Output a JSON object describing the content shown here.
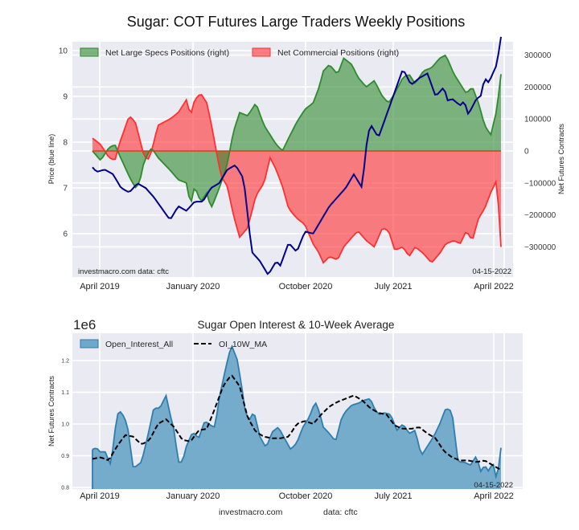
{
  "chart_data": [
    {
      "type": "area",
      "title": "Sugar: COT Futures Large Traders Weekly Positions",
      "xlabel": "",
      "ylabel": "Price (blue line)",
      "ylabel_right": "Net Futures Contracts",
      "x_ticks": [
        "April 2019",
        "January 2020",
        "October 2020",
        "July 2021",
        "April 2022"
      ],
      "y_ticks_left": [
        "6",
        "7",
        "8",
        "9",
        "10"
      ],
      "y_ticks_right": [
        "-300000",
        "-200000",
        "-100000",
        "0",
        "100000",
        "200000",
        "300000"
      ],
      "ylim_left": [
        5.1,
        10.2
      ],
      "ylim_right": [
        -395000,
        330000
      ],
      "grid": true,
      "legend": {
        "placement": "top",
        "entries": [
          "Net Large Specs Positions (right)",
          "Net Commercial Positions (right)"
        ]
      },
      "annotations": {
        "source": "investmacro.com   data: cftc",
        "date": "04-15-2022"
      },
      "colors": {
        "specs": "#2e8b2e",
        "commercial": "#ff3030",
        "price": "#00008b",
        "background": "#eaeaf2"
      },
      "x_date_range": [
        "2019-03-12",
        "2022-04-12"
      ],
      "series": [
        {
          "name": "Net Large Specs Positions (right)",
          "axis": "right",
          "keyframes_x": [
            0,
            0.02,
            0.04,
            0.055,
            0.065,
            0.09,
            0.105,
            0.115,
            0.125,
            0.135,
            0.145,
            0.16,
            0.19,
            0.21,
            0.23,
            0.24,
            0.25,
            0.265,
            0.28,
            0.29,
            0.3,
            0.315,
            0.33,
            0.345,
            0.36,
            0.38,
            0.4,
            0.42,
            0.435,
            0.45,
            0.465,
            0.48,
            0.5,
            0.52,
            0.54,
            0.555,
            0.565,
            0.58,
            0.6,
            0.615,
            0.635,
            0.65,
            0.67,
            0.69,
            0.71,
            0.725,
            0.74,
            0.76,
            0.775,
            0.79,
            0.81,
            0.83,
            0.85,
            0.865,
            0.885,
            0.9,
            0.915,
            0.93,
            0.945,
            0.96,
            0.975,
            0.99,
            1.0
          ],
          "keyframes_y": [
            0,
            -30000,
            10000,
            20000,
            -10000,
            -80000,
            -115000,
            -100000,
            -40000,
            -10000,
            10000,
            -20000,
            -60000,
            -90000,
            -100000,
            -170000,
            -110000,
            -160000,
            -130000,
            -180000,
            -150000,
            -100000,
            -40000,
            60000,
            120000,
            110000,
            150000,
            80000,
            50000,
            20000,
            0,
            40000,
            90000,
            130000,
            150000,
            200000,
            250000,
            270000,
            240000,
            290000,
            270000,
            230000,
            200000,
            220000,
            170000,
            150000,
            180000,
            230000,
            240000,
            210000,
            250000,
            260000,
            290000,
            300000,
            240000,
            210000,
            180000,
            200000,
            150000,
            80000,
            50000,
            130000,
            240000
          ]
        },
        {
          "name": "Net Commercial Positions (right)",
          "axis": "right",
          "keyframes_x": [
            0,
            0.02,
            0.04,
            0.055,
            0.065,
            0.09,
            0.105,
            0.115,
            0.125,
            0.135,
            0.145,
            0.16,
            0.19,
            0.21,
            0.23,
            0.24,
            0.25,
            0.265,
            0.28,
            0.29,
            0.3,
            0.315,
            0.33,
            0.345,
            0.36,
            0.38,
            0.4,
            0.42,
            0.435,
            0.45,
            0.465,
            0.48,
            0.5,
            0.52,
            0.54,
            0.555,
            0.565,
            0.58,
            0.6,
            0.615,
            0.635,
            0.65,
            0.67,
            0.69,
            0.71,
            0.725,
            0.74,
            0.76,
            0.775,
            0.79,
            0.81,
            0.83,
            0.85,
            0.865,
            0.885,
            0.9,
            0.915,
            0.93,
            0.945,
            0.96,
            0.975,
            0.99,
            1.0
          ],
          "keyframes_y": [
            40000,
            20000,
            -20000,
            -30000,
            20000,
            110000,
            90000,
            40000,
            -10000,
            -30000,
            0,
            80000,
            100000,
            120000,
            160000,
            110000,
            160000,
            180000,
            150000,
            90000,
            20000,
            -80000,
            -110000,
            -200000,
            -270000,
            -240000,
            -140000,
            -100000,
            -20000,
            -60000,
            -110000,
            -180000,
            -210000,
            -230000,
            -290000,
            -320000,
            -350000,
            -330000,
            -340000,
            -300000,
            -270000,
            -250000,
            -280000,
            -300000,
            -240000,
            -250000,
            -310000,
            -300000,
            -330000,
            -300000,
            -320000,
            -350000,
            -320000,
            -290000,
            -280000,
            -290000,
            -250000,
            -280000,
            -210000,
            -180000,
            -130000,
            -90000,
            -300000
          ]
        },
        {
          "name": "Price (blue line)",
          "axis": "left",
          "keyframes_x": [
            0,
            0.01,
            0.03,
            0.05,
            0.07,
            0.09,
            0.11,
            0.13,
            0.15,
            0.17,
            0.19,
            0.21,
            0.23,
            0.25,
            0.27,
            0.29,
            0.31,
            0.33,
            0.35,
            0.37,
            0.39,
            0.41,
            0.43,
            0.45,
            0.46,
            0.48,
            0.5,
            0.52,
            0.54,
            0.56,
            0.58,
            0.6,
            0.62,
            0.64,
            0.66,
            0.67,
            0.68,
            0.7,
            0.72,
            0.74,
            0.76,
            0.78,
            0.8,
            0.82,
            0.84,
            0.86,
            0.87,
            0.88,
            0.9,
            0.91,
            0.92,
            0.94,
            0.95,
            0.96,
            0.97,
            0.98,
            0.99,
            1.0
          ],
          "keyframes_y": [
            7.45,
            7.35,
            7.4,
            7.3,
            7.0,
            6.9,
            7.1,
            7.0,
            6.8,
            6.55,
            6.3,
            6.6,
            6.5,
            6.7,
            6.7,
            7.0,
            7.1,
            7.4,
            7.5,
            7.2,
            5.6,
            5.4,
            5.1,
            5.4,
            5.3,
            5.8,
            5.6,
            6.05,
            6.0,
            6.3,
            6.6,
            6.8,
            7.0,
            7.3,
            7.0,
            7.9,
            8.4,
            8.1,
            8.6,
            9.1,
            9.6,
            9.25,
            9.4,
            9.5,
            9.0,
            9.2,
            8.9,
            8.95,
            8.8,
            8.9,
            8.6,
            8.95,
            9.0,
            9.4,
            9.3,
            9.5,
            9.7,
            10.3
          ]
        }
      ]
    },
    {
      "type": "area",
      "title": "Sugar Open Interest & 10-Week Average",
      "xlabel": "",
      "ylabel": "Net Futures Contracts",
      "scale_label": "1e6",
      "x_ticks": [
        "April 2019",
        "January 2020",
        "October 2020",
        "July 2021",
        "April 2022"
      ],
      "y_ticks": [
        "0.8",
        "0.9",
        "1.0",
        "1.1",
        "1.2"
      ],
      "ylim": [
        0.79,
        1.29
      ],
      "grid": true,
      "legend": {
        "placement": "top-left",
        "entries": [
          "Open_Interest_All",
          "OI_10W_MA"
        ]
      },
      "annotations": {
        "date": "04-15-2022",
        "footer_source": "investmacro.com",
        "footer_data": "data: cftc"
      },
      "colors": {
        "oi_line": "#2e7eaf",
        "oi_fill": "#6fa8c8",
        "ma": "#000000",
        "background": "#eaeaf2"
      },
      "series": [
        {
          "name": "Open_Interest_All",
          "keyframes_x": [
            0,
            0.01,
            0.02,
            0.03,
            0.045,
            0.06,
            0.07,
            0.085,
            0.1,
            0.12,
            0.135,
            0.15,
            0.165,
            0.18,
            0.19,
            0.2,
            0.21,
            0.22,
            0.23,
            0.245,
            0.26,
            0.275,
            0.29,
            0.3,
            0.31,
            0.325,
            0.34,
            0.355,
            0.365,
            0.375,
            0.385,
            0.395,
            0.41,
            0.425,
            0.44,
            0.455,
            0.47,
            0.485,
            0.5,
            0.515,
            0.53,
            0.545,
            0.555,
            0.565,
            0.58,
            0.595,
            0.61,
            0.62,
            0.635,
            0.65,
            0.665,
            0.68,
            0.69,
            0.7,
            0.715,
            0.73,
            0.745,
            0.76,
            0.775,
            0.79,
            0.805,
            0.82,
            0.835,
            0.85,
            0.865,
            0.88,
            0.895,
            0.91,
            0.925,
            0.94,
            0.95,
            0.96,
            0.97,
            0.98,
            0.99,
            1.0
          ],
          "keyframes_y": [
            0.92,
            0.925,
            0.91,
            0.915,
            0.87,
            1.03,
            1.04,
            1.0,
            0.86,
            0.88,
            0.96,
            1.05,
            1.05,
            1.09,
            1.03,
            0.98,
            0.88,
            0.88,
            0.93,
            0.975,
            0.955,
            1.01,
            0.995,
            0.99,
            1.08,
            1.17,
            1.25,
            1.2,
            1.12,
            1.03,
            1.015,
            1.04,
            0.96,
            0.925,
            0.975,
            0.99,
            0.955,
            0.92,
            0.94,
            0.99,
            1.02,
            1.07,
            1.04,
            0.99,
            0.97,
            0.945,
            1.02,
            1.04,
            1.06,
            1.065,
            1.075,
            1.08,
            1.05,
            1.03,
            1.035,
            1.03,
            0.98,
            1.0,
            0.97,
            0.98,
            0.9,
            0.93,
            0.96,
            1.0,
            1.05,
            1.04,
            0.88,
            0.88,
            0.87,
            0.9,
            0.85,
            0.87,
            0.85,
            0.88,
            0.82,
            0.925
          ]
        },
        {
          "name": "OI_10W_MA",
          "keyframes_x": [
            0,
            0.02,
            0.04,
            0.06,
            0.08,
            0.1,
            0.12,
            0.14,
            0.16,
            0.18,
            0.2,
            0.22,
            0.24,
            0.26,
            0.28,
            0.3,
            0.32,
            0.34,
            0.36,
            0.38,
            0.4,
            0.42,
            0.44,
            0.46,
            0.48,
            0.5,
            0.52,
            0.54,
            0.56,
            0.58,
            0.6,
            0.62,
            0.64,
            0.66,
            0.68,
            0.7,
            0.72,
            0.74,
            0.76,
            0.78,
            0.8,
            0.82,
            0.84,
            0.86,
            0.88,
            0.9,
            0.92,
            0.94,
            0.96,
            0.98,
            1.0
          ],
          "keyframes_y": [
            0.89,
            0.895,
            0.885,
            0.93,
            0.965,
            0.96,
            0.935,
            0.95,
            1.0,
            1.015,
            0.99,
            0.95,
            0.945,
            0.98,
            0.985,
            1.05,
            1.12,
            1.155,
            1.12,
            1.02,
            0.975,
            0.96,
            0.955,
            0.955,
            0.96,
            1.0,
            1.01,
            1.0,
            1.03,
            1.055,
            1.07,
            1.08,
            1.09,
            1.075,
            1.05,
            1.035,
            1.03,
            0.995,
            0.985,
            0.985,
            0.99,
            0.97,
            0.955,
            0.915,
            0.895,
            0.885,
            0.885,
            0.88,
            0.885,
            0.87,
            0.855
          ]
        }
      ]
    }
  ]
}
